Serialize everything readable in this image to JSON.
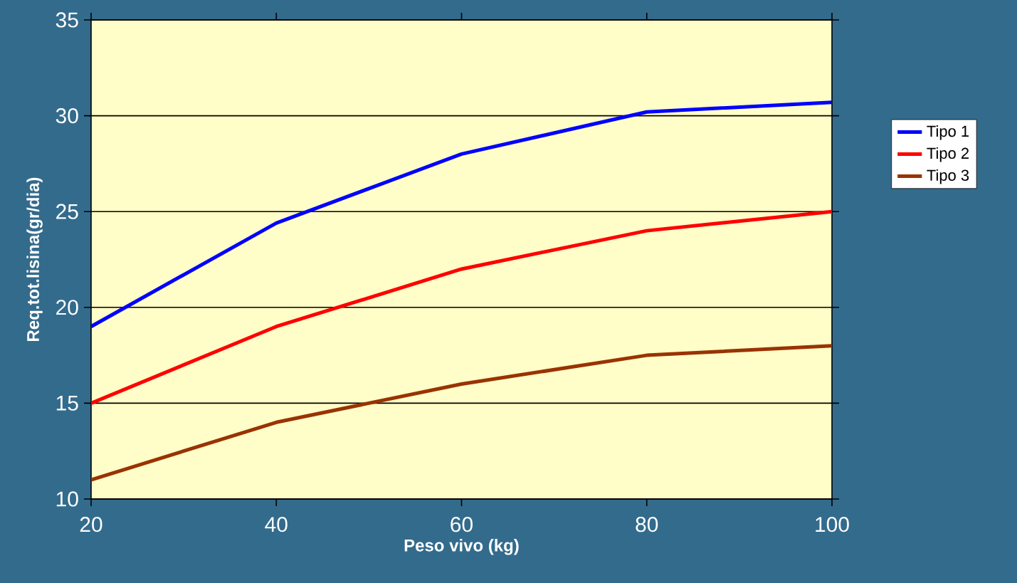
{
  "chart_data": {
    "type": "line",
    "xlabel": "Peso vivo (kg)",
    "ylabel": "Req.tot.lisina(gr/dia)",
    "x": [
      20,
      40,
      60,
      80,
      100
    ],
    "series": [
      {
        "name": "Tipo 1",
        "color": "#0000ff",
        "values": [
          19,
          24.4,
          28,
          30.2,
          30.7
        ]
      },
      {
        "name": "Tipo 2",
        "color": "#ff0000",
        "values": [
          15,
          19,
          22,
          24,
          25
        ]
      },
      {
        "name": "Tipo 3",
        "color": "#993300",
        "values": [
          11,
          14,
          16,
          17.5,
          18
        ]
      }
    ],
    "xlim": [
      20,
      100
    ],
    "xticks": [
      20,
      40,
      60,
      80,
      100
    ],
    "ylim": [
      10,
      35
    ],
    "yticks": [
      10,
      15,
      20,
      25,
      30,
      35
    ],
    "grid": "y",
    "legend": "right",
    "marker": "none",
    "line_style": "solid"
  }
}
